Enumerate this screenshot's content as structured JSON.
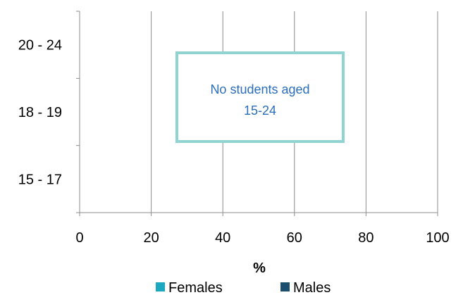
{
  "chart_data": {
    "type": "bar",
    "orientation": "horizontal",
    "categories": [
      "15 - 17",
      "18 - 19",
      "20 - 24"
    ],
    "series": [
      {
        "name": "Females",
        "color": "#1ca9c0",
        "values": [
          0,
          0,
          0
        ]
      },
      {
        "name": "Males",
        "color": "#1c4e6e",
        "values": [
          0,
          0,
          0
        ]
      }
    ],
    "xlabel": "%",
    "ylabel": "",
    "title": "",
    "xlim": [
      0,
      100
    ],
    "xticks": [
      0,
      20,
      40,
      60,
      80,
      100
    ],
    "grid": "vertical",
    "legend_position": "bottom",
    "annotation": {
      "lines": [
        "No students aged",
        "15-24"
      ],
      "text_color": "#2a6ebb",
      "border_color": "#8fd3d3"
    }
  }
}
